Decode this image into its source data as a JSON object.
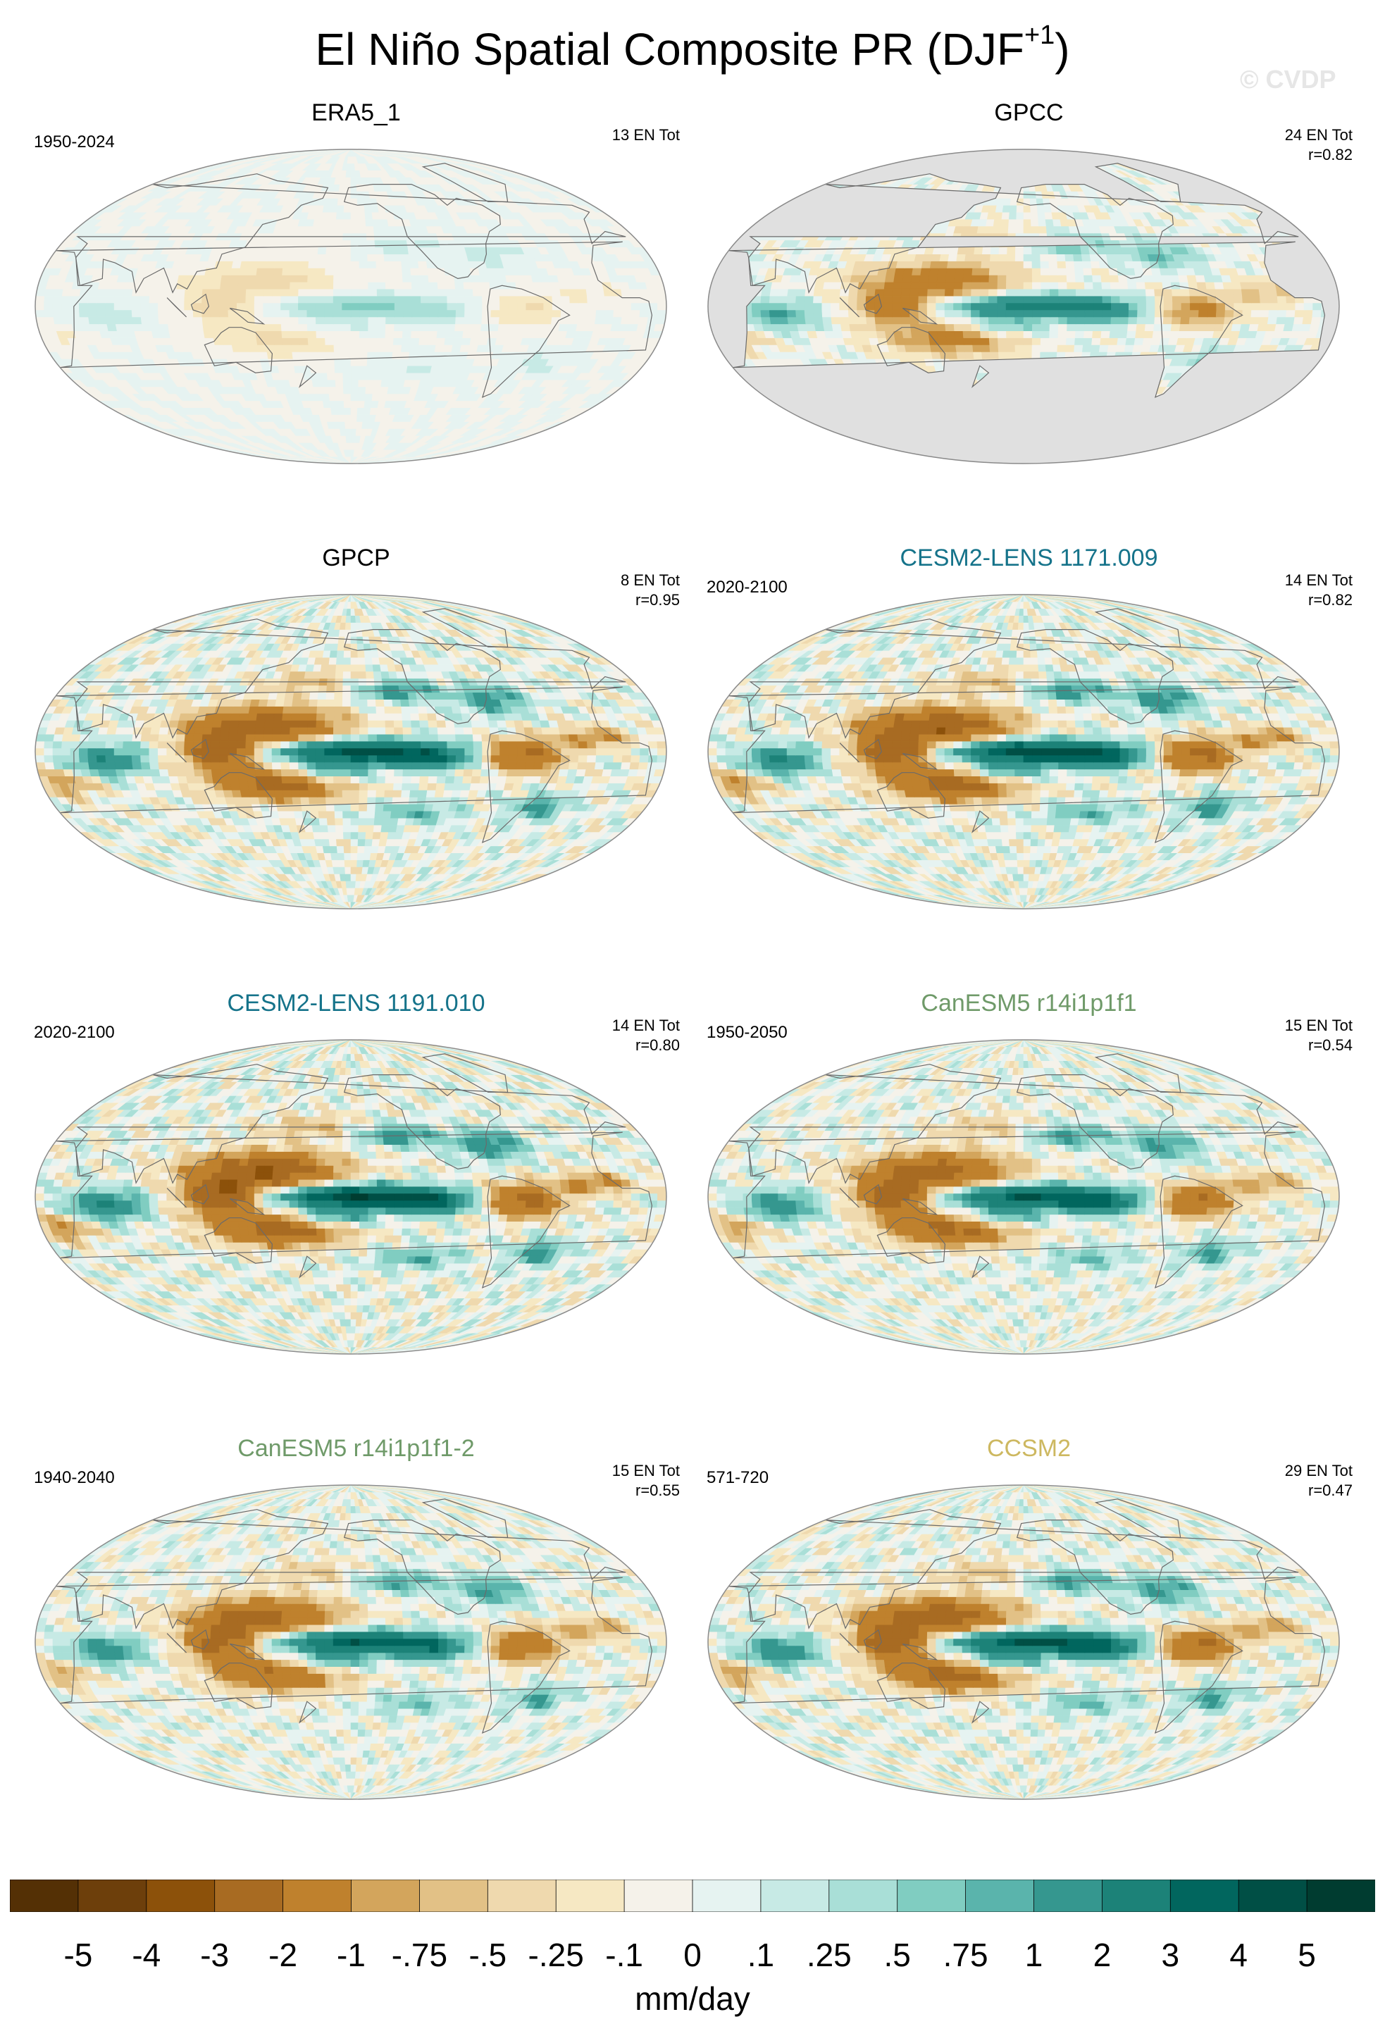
{
  "header": {
    "title": "El Niño Spatial Composite PR (DJF",
    "title_sup": "+1",
    "title_close": ")",
    "watermark": "© CVDP"
  },
  "colors": {
    "dry": [
      "#543005",
      "#6d3f0b",
      "#8c510a",
      "#a86b22",
      "#bf812d",
      "#d3a55c",
      "#e2c186",
      "#efd9ae",
      "#f6e8c3",
      "#f5f2ea"
    ],
    "wet": [
      "#e6f3f1",
      "#c7eae5",
      "#a9dfd7",
      "#80cdc1",
      "#5ab4ac",
      "#35978f",
      "#1c8278",
      "#01665e",
      "#004f45",
      "#003c30"
    ],
    "land_mask": "#e0e0e0",
    "ocean": "#eef6f2",
    "title_teal": "#15738a",
    "title_green": "#6f9a69",
    "title_gold": "#cdb860"
  },
  "chart_data": {
    "type": "heatmap",
    "title": "El Niño Spatial Composite PR (DJF+1)",
    "units": "mm/day",
    "colorbar": {
      "levels": [
        "-5",
        "-4",
        "-3",
        "-2",
        "-1",
        "-.75",
        "-.5",
        "-.25",
        "-.1",
        "0",
        ".1",
        ".25",
        ".5",
        ".75",
        "1",
        "2",
        "3",
        "4",
        "5"
      ],
      "n_bins": 20
    },
    "panels": [
      {
        "name": "ERA5_1",
        "period": "1950-2024",
        "stats": [
          "13 EN Tot"
        ],
        "title_color": "black",
        "amplitude": 0.12,
        "masked_ocean": false
      },
      {
        "name": "GPCC",
        "period": "",
        "stats": [
          "24 EN Tot",
          "r=0.82"
        ],
        "title_color": "black",
        "amplitude": 0.55,
        "masked_ocean": true
      },
      {
        "name": "GPCP",
        "period": "",
        "stats": [
          "8 EN Tot",
          "r=0.95"
        ],
        "title_color": "black",
        "amplitude": 1.0,
        "masked_ocean": false
      },
      {
        "name": "CESM2-LENS 1171.009",
        "period": "2020-2100",
        "stats": [
          "14 EN Tot",
          "r=0.82"
        ],
        "title_color": "teal",
        "amplitude": 1.05,
        "masked_ocean": false
      },
      {
        "name": "CESM2-LENS 1191.010",
        "period": "2020-2100",
        "stats": [
          "14 EN Tot",
          "r=0.80"
        ],
        "title_color": "teal",
        "amplitude": 1.1,
        "masked_ocean": false
      },
      {
        "name": "CanESM5 r14i1p1f1",
        "period": "1950-2050",
        "stats": [
          "15 EN Tot",
          "r=0.54"
        ],
        "title_color": "green",
        "amplitude": 0.9,
        "masked_ocean": false
      },
      {
        "name": "CanESM5 r14i1p1f1-2",
        "period": "1940-2040",
        "stats": [
          "15 EN Tot",
          "r=0.55"
        ],
        "title_color": "green",
        "amplitude": 0.85,
        "masked_ocean": false
      },
      {
        "name": "CCSM2",
        "period": "571-720",
        "stats": [
          "29 EN Tot",
          "r=0.47"
        ],
        "title_color": "gold",
        "amplitude": 0.95,
        "masked_ocean": false
      }
    ]
  }
}
